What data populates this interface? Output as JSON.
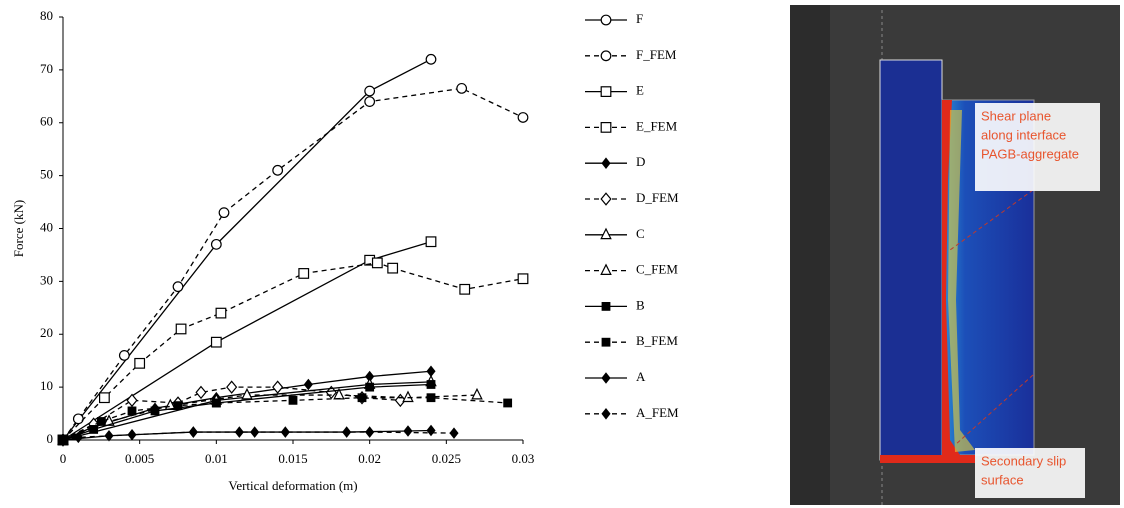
{
  "chart_data": {
    "type": "line",
    "x_label": "Vertical deformation (m)",
    "y_label": "Force (kN)",
    "xlim": [
      0,
      0.03
    ],
    "xticks": [
      0,
      0.005,
      0.01,
      0.015,
      0.02,
      0.025,
      0.03
    ],
    "ylim": [
      0,
      80
    ],
    "yticks": [
      0,
      10,
      20,
      30,
      40,
      50,
      60,
      70,
      80
    ],
    "grid": false,
    "legend": "right",
    "series": [
      {
        "name": "F",
        "color": "#000000",
        "dash": false,
        "marker": "circle",
        "filled": false,
        "x": [
          0,
          0.01,
          0.02,
          0.024
        ],
        "values": [
          0,
          37,
          66,
          72
        ]
      },
      {
        "name": "F_FEM",
        "color": "#000000",
        "dash": true,
        "marker": "circle",
        "filled": false,
        "x": [
          0,
          0.001,
          0.004,
          0.0075,
          0.0105,
          0.014,
          0.02,
          0.026,
          0.03
        ],
        "values": [
          0,
          4,
          16,
          29,
          43,
          51,
          64,
          66.5,
          61
        ]
      },
      {
        "name": "E",
        "color": "#000000",
        "dash": false,
        "marker": "square",
        "filled": false,
        "x": [
          0,
          0.01,
          0.02,
          0.024
        ],
        "values": [
          0,
          18.5,
          34,
          37.5
        ]
      },
      {
        "name": "E_FEM",
        "color": "#000000",
        "dash": true,
        "marker": "square",
        "filled": false,
        "x": [
          0,
          0.0027,
          0.005,
          0.0077,
          0.0103,
          0.0157,
          0.0205,
          0.0215,
          0.0262,
          0.03
        ],
        "values": [
          0,
          8,
          14.5,
          21,
          24,
          31.5,
          33.5,
          32.5,
          28.5,
          30.5
        ]
      },
      {
        "name": "D",
        "color": "#000000",
        "dash": false,
        "marker": "diamond",
        "filled": true,
        "x": [
          0,
          0.002,
          0.006,
          0.01,
          0.016,
          0.02,
          0.024
        ],
        "values": [
          0,
          2.5,
          6,
          8,
          10.5,
          12,
          13
        ]
      },
      {
        "name": "D_FEM",
        "color": "#000000",
        "dash": true,
        "marker": "diamond",
        "filled": false,
        "x": [
          0,
          0.002,
          0.0045,
          0.0075,
          0.009,
          0.011,
          0.014,
          0.0175,
          0.0195,
          0.022
        ],
        "values": [
          0,
          3,
          7.5,
          7,
          9,
          10,
          10,
          9,
          8,
          7.5
        ]
      },
      {
        "name": "C",
        "color": "#000000",
        "dash": false,
        "marker": "triangle",
        "filled": false,
        "x": [
          0,
          0.01,
          0.02,
          0.024
        ],
        "values": [
          0,
          7.5,
          10.5,
          11
        ]
      },
      {
        "name": "C_FEM",
        "color": "#000000",
        "dash": true,
        "marker": "triangle",
        "filled": false,
        "x": [
          0,
          0.003,
          0.007,
          0.012,
          0.018,
          0.0225,
          0.027
        ],
        "values": [
          0,
          3.5,
          6.5,
          8.5,
          8.5,
          8,
          8.5
        ]
      },
      {
        "name": "B",
        "color": "#000000",
        "dash": false,
        "marker": "square",
        "filled": true,
        "x": [
          0,
          0.002,
          0.006,
          0.01,
          0.02,
          0.024
        ],
        "values": [
          0,
          2,
          5.5,
          7,
          10,
          10.5
        ]
      },
      {
        "name": "B_FEM",
        "color": "#000000",
        "dash": true,
        "marker": "square",
        "filled": true,
        "x": [
          0,
          0.0025,
          0.0045,
          0.0075,
          0.01,
          0.015,
          0.0195,
          0.024,
          0.029
        ],
        "values": [
          0,
          3.5,
          5.5,
          6.5,
          7,
          7.5,
          8,
          8,
          7
        ]
      },
      {
        "name": "A",
        "color": "#000000",
        "dash": false,
        "marker": "diamond",
        "filled": true,
        "x": [
          0,
          0.003,
          0.0085,
          0.0115,
          0.0145,
          0.0185,
          0.0225,
          0.024
        ],
        "values": [
          0,
          0.8,
          1.5,
          1.5,
          1.5,
          1.5,
          1.7,
          1.8
        ]
      },
      {
        "name": "A_FEM",
        "color": "#000000",
        "dash": true,
        "marker": "diamond",
        "filled": true,
        "x": [
          0,
          0.001,
          0.0045,
          0.0085,
          0.0125,
          0.02,
          0.0255
        ],
        "values": [
          0,
          0.5,
          1,
          1.5,
          1.5,
          1.5,
          1.3
        ]
      }
    ]
  },
  "image": {
    "annotations": [
      {
        "lines": [
          "Shear plane",
          "along interface",
          "PAGB-aggregate"
        ]
      },
      {
        "lines": [
          "Secondary slip",
          "surface"
        ]
      }
    ]
  }
}
